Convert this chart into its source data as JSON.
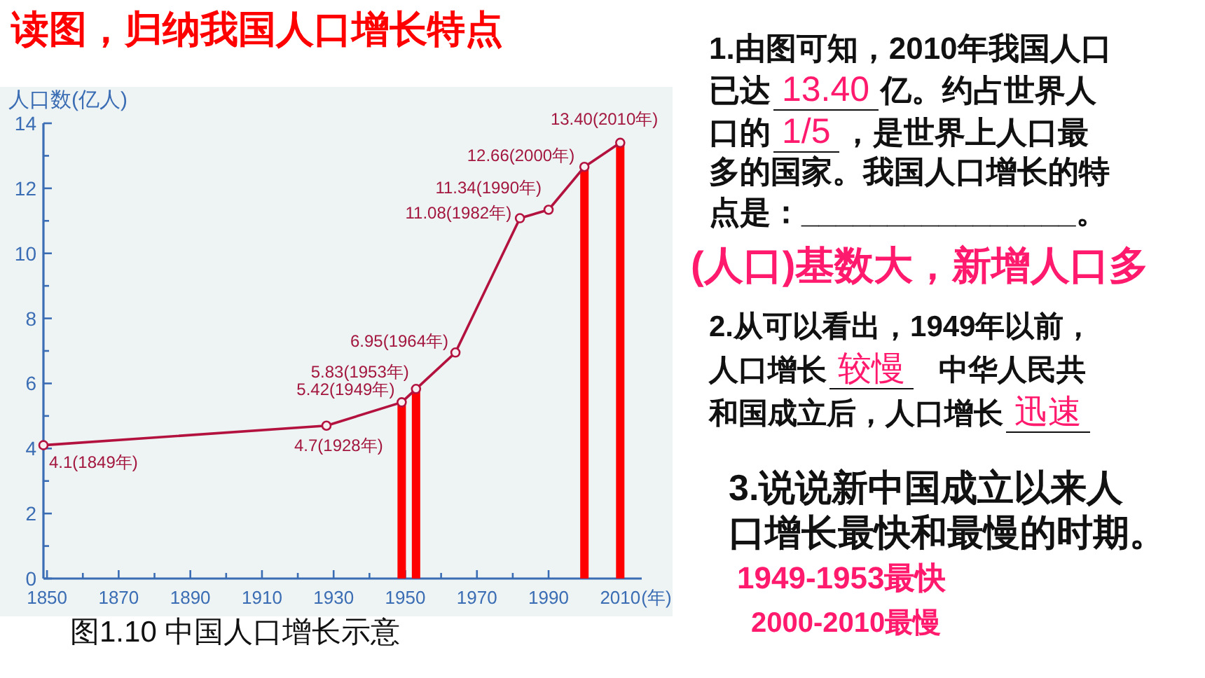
{
  "chart_data": {
    "type": "line",
    "title": "读图，归纳我国人口增长特点",
    "xlabel": "(年)",
    "ylabel": "人口数(亿人)",
    "x": [
      1849,
      1928,
      1949,
      1953,
      1964,
      1982,
      1990,
      2000,
      2010
    ],
    "series": [
      {
        "type": "bar",
        "x": [
          1949,
          1953,
          2000,
          2010
        ],
        "color": "#ff0000",
        "values": [
          5.42,
          5.83,
          12.66,
          13.4
        ]
      },
      {
        "color": "#b3123f",
        "values": [
          4.1,
          4.7,
          5.42,
          5.83,
          6.95,
          11.08,
          11.34,
          12.66,
          13.4
        ],
        "value_labels": [
          "4.1(1849年)",
          "4.7(1928年)",
          "5.42(1949年)",
          "5.83(1953年)",
          "6.95(1964年)",
          "11.08(1982年)",
          "11.34(1990年)",
          "12.66(2000年)",
          "13.40(2010年)"
        ]
      }
    ],
    "xlim": [
      1849,
      2016
    ],
    "xticks": [
      1850,
      {
        "value": 1860,
        "label": null
      },
      1870,
      {
        "value": 1880,
        "label": null
      },
      1890,
      {
        "value": 1900,
        "label": null
      },
      1910,
      {
        "value": 1920,
        "label": null
      },
      1930,
      {
        "value": 1940,
        "label": null
      },
      1950,
      {
        "value": 1960,
        "label": null
      },
      1970,
      {
        "value": 1980,
        "label": null
      },
      1990,
      {
        "value": 2000,
        "label": null
      },
      2010
    ],
    "ylim": [
      0,
      14
    ],
    "yticks": [
      0,
      {
        "value": 1,
        "label": null
      },
      2,
      {
        "value": 3,
        "label": null
      },
      4,
      {
        "value": 5,
        "label": null
      },
      6,
      {
        "value": 7,
        "label": null
      },
      8,
      {
        "value": 9,
        "label": null
      },
      10,
      {
        "value": 11,
        "label": null
      },
      12,
      {
        "value": 13,
        "label": null
      },
      14
    ],
    "marker": "circle",
    "annotations": [
      "1.由图可知，2010年我国人口",
      "已达",
      "13.40",
      "亿。约占世界人",
      "口的",
      "1/5",
      "，是世界上人口最",
      "多的国家。我国人口增长的特",
      "点是：________________。",
      "(人口)基数大，新增人口多",
      "2.从可以看出，1949年以前，",
      "人口增长",
      "较慢",
      "中华人民共",
      "和国成立后，人口增长",
      "迅速",
      "3.说说新中国成立以来人",
      "口增长最快和最慢的时期。",
      "1949-1953最快",
      "2000-2010最慢",
      "图1.10 中国人口增长示意"
    ]
  }
}
